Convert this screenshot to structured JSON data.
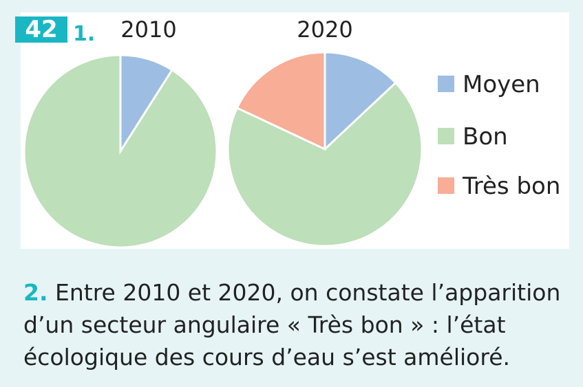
{
  "exercise": {
    "number": "42",
    "part1_label": "1."
  },
  "colors": {
    "moyen": "#9dbde3",
    "bon": "#bddfb9",
    "tres_bon": "#f7ad96",
    "accent": "#19b7c3"
  },
  "chart_data": [
    {
      "type": "pie",
      "title": "2010",
      "labels": [
        "Moyen",
        "Bon"
      ],
      "values": [
        9,
        91
      ]
    },
    {
      "type": "pie",
      "title": "2020",
      "labels": [
        "Moyen",
        "Bon",
        "Très bon"
      ],
      "values": [
        13,
        69,
        18
      ]
    }
  ],
  "legend": [
    {
      "label": "Moyen",
      "color": "#9dbde3"
    },
    {
      "label": "Bon",
      "color": "#bddfb9"
    },
    {
      "label": "Très bon",
      "color": "#f7ad96"
    }
  ],
  "answer": {
    "number": "2.",
    "text": " Entre 2010 et 2020, on constate l’apparition d’un secteur angulaire « Très bon » : l’état écologique des cours d’eau s’est amélioré."
  }
}
